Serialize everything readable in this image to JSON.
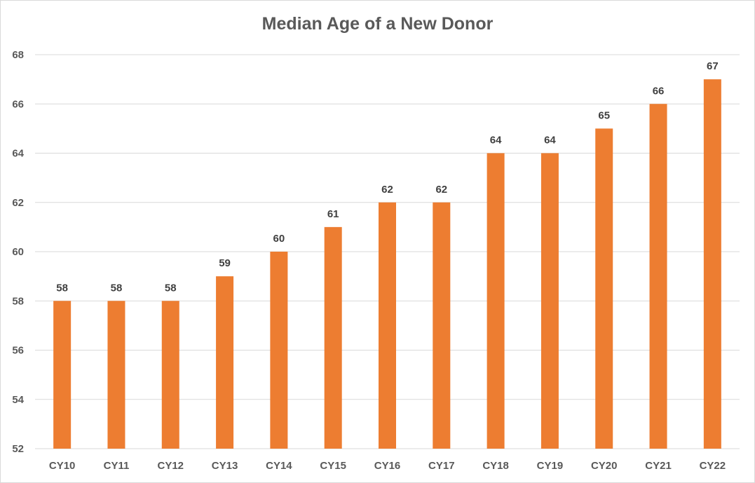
{
  "chart_data": {
    "type": "bar",
    "title": "Median Age of a New Donor",
    "xlabel": "",
    "ylabel": "",
    "categories": [
      "CY10",
      "CY11",
      "CY12",
      "CY13",
      "CY14",
      "CY15",
      "CY16",
      "CY17",
      "CY18",
      "CY19",
      "CY20",
      "CY21",
      "CY22"
    ],
    "values": [
      58,
      58,
      58,
      59,
      60,
      61,
      62,
      62,
      64,
      64,
      65,
      66,
      67
    ],
    "ylim": [
      52,
      68
    ],
    "yticks": [
      52,
      54,
      56,
      58,
      60,
      62,
      64,
      66,
      68
    ],
    "grid": true,
    "data_labels": true,
    "legend": "none",
    "bar_color": "#ED7D31",
    "grid_color": "#d9d9d9"
  }
}
